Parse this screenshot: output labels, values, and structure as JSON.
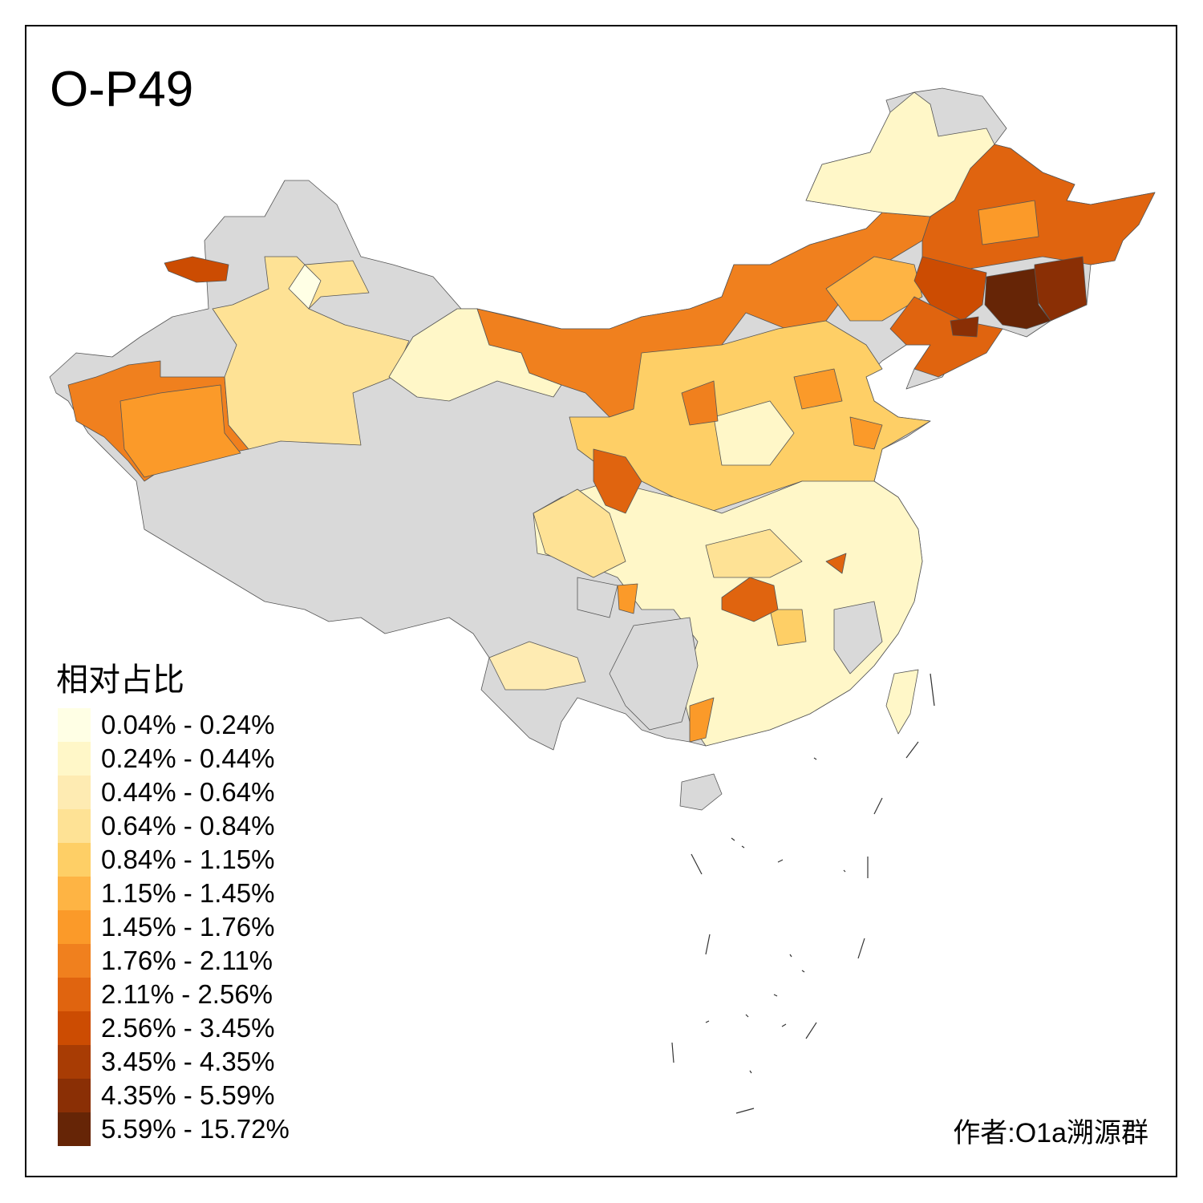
{
  "title": "O-P49",
  "legend": {
    "title": "相对占比",
    "items": [
      {
        "label": "0.04% - 0.24%",
        "color": "#FFFFE5"
      },
      {
        "label": "0.24% - 0.44%",
        "color": "#FFF7C8"
      },
      {
        "label": "0.44% - 0.64%",
        "color": "#FEEBB2"
      },
      {
        "label": "0.64% - 0.84%",
        "color": "#FEE295"
      },
      {
        "label": "0.84% - 1.15%",
        "color": "#FECF66"
      },
      {
        "label": "1.15% - 1.45%",
        "color": "#FEB444"
      },
      {
        "label": "1.45% - 1.76%",
        "color": "#FB9A29"
      },
      {
        "label": "1.76% - 2.11%",
        "color": "#F0801E"
      },
      {
        "label": "2.11% - 2.56%",
        "color": "#E0640F"
      },
      {
        "label": "2.56% - 3.45%",
        "color": "#CC4C02"
      },
      {
        "label": "3.45% - 4.35%",
        "color": "#A83C04"
      },
      {
        "label": "4.35% - 5.59%",
        "color": "#8A2F05"
      },
      {
        "label": "5.59% - 15.72%",
        "color": "#662506"
      }
    ]
  },
  "no_data_color": "#D9D9D9",
  "author": "作者:O1a溯源群"
}
